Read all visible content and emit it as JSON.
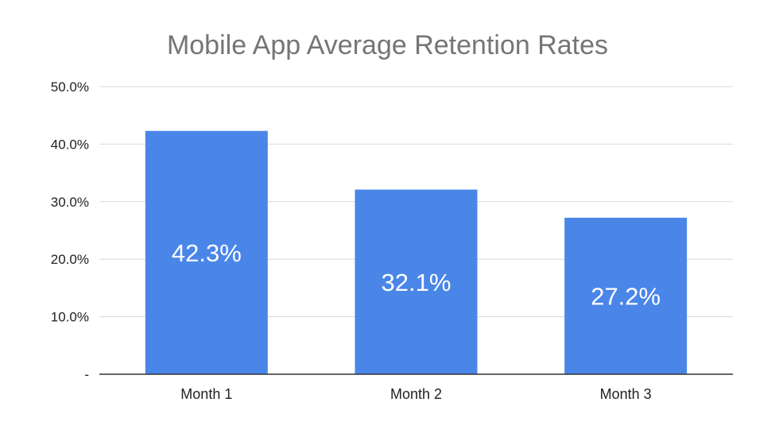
{
  "chart_data": {
    "type": "bar",
    "title": "Mobile App Average Retention Rates",
    "categories": [
      "Month 1",
      "Month 2",
      "Month 3"
    ],
    "values": [
      42.3,
      32.1,
      27.2
    ],
    "data_labels": [
      "42.3%",
      "32.1%",
      "27.2%"
    ],
    "xlabel": "",
    "ylabel": "",
    "ylim": [
      0,
      50
    ],
    "yticks": [
      0,
      10,
      20,
      30,
      40,
      50
    ],
    "ytick_labels": [
      "-",
      "10.0%",
      "20.0%",
      "30.0%",
      "40.0%",
      "50.0%"
    ],
    "grid": true,
    "bar_color": "#4a86e8"
  }
}
